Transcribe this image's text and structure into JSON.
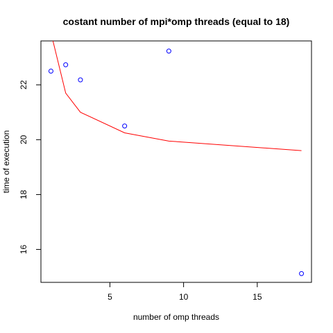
{
  "chart_data": {
    "type": "scatter",
    "title": "costant number of mpi*omp threads (equal to 18)",
    "xlabel": "number of omp threads",
    "ylabel": "time of execution",
    "xlim": [
      0.32,
      18.68
    ],
    "ylim": [
      14.8,
      23.6
    ],
    "x_ticks": [
      5,
      10,
      15
    ],
    "y_ticks": [
      16,
      18,
      20,
      22
    ],
    "grid": false,
    "legend": "none",
    "series": [
      {
        "kind": "points",
        "marker": "open-circle",
        "color": "#0000ff",
        "x": [
          1,
          2,
          3,
          6,
          9,
          18
        ],
        "y": [
          22.5,
          22.73,
          22.18,
          20.5,
          23.23,
          15.12
        ]
      },
      {
        "kind": "line",
        "color": "#ff0000",
        "x": [
          1,
          2,
          3,
          6,
          9,
          18
        ],
        "y": [
          23.9,
          21.7,
          21.0,
          20.25,
          19.95,
          19.6
        ]
      }
    ]
  }
}
